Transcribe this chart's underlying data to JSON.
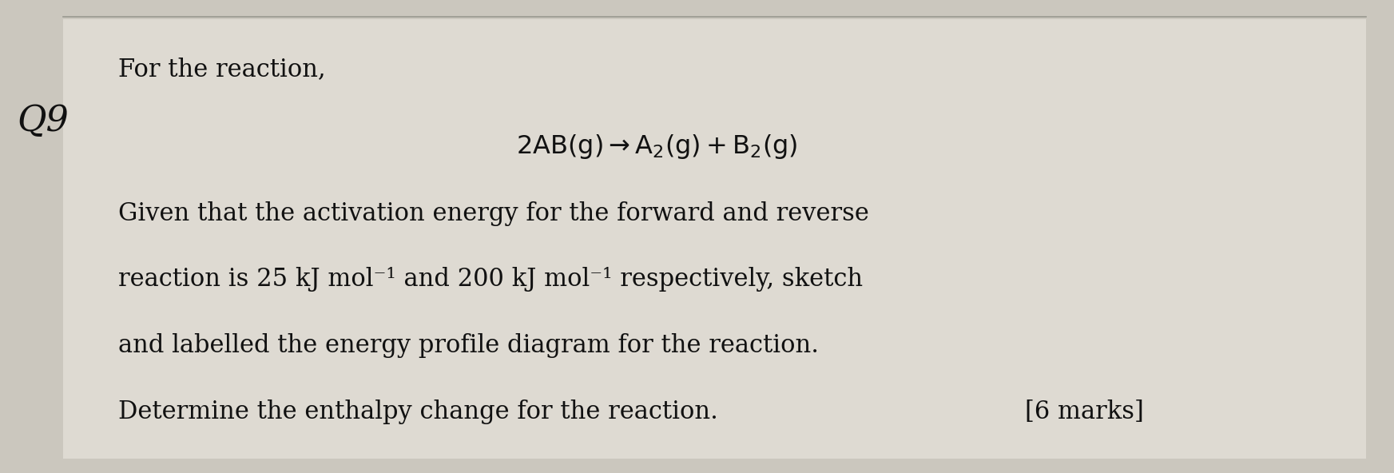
{
  "bg_color": "#cbc7be",
  "page_bg": "#dedad2",
  "q_label": "Q9",
  "title_line": "For the reaction,",
  "body_lines": [
    "Given that the activation energy for the forward and reverse",
    "reaction is 25 kJ mol⁻¹ and 200 kJ mol⁻¹ respectively, sketch",
    "and labelled the energy profile diagram for the reaction.",
    "Determine the enthalpy change for the reaction."
  ],
  "marks": "[6 marks]",
  "font_size_title": 22,
  "font_size_body": 22,
  "font_size_reaction": 23,
  "font_size_q": 32,
  "top_line_color": "#999990",
  "text_color": "#111111"
}
